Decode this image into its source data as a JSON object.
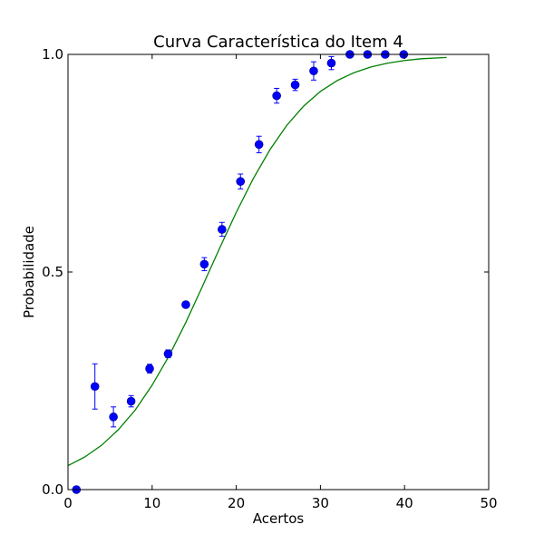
{
  "chart_data": {
    "type": "scatter",
    "title": "Curva Característica do Item 4",
    "xlabel": "Acertos",
    "ylabel": "Probabilidade",
    "xlim": [
      0,
      50
    ],
    "ylim": [
      0.0,
      1.0
    ],
    "x_ticks": [
      0,
      10,
      20,
      30,
      40,
      50
    ],
    "x_tick_labels": [
      "0",
      "10",
      "20",
      "30",
      "40",
      "50"
    ],
    "y_ticks": [
      0.0,
      0.5,
      1.0
    ],
    "y_tick_labels": [
      "0.0",
      "0.5",
      "1.0"
    ],
    "grid": false,
    "legend": "none",
    "colors": {
      "points": "#0000ff",
      "curve": "#008000",
      "axes": "#000000"
    },
    "series": [
      {
        "type": "scatter_errorbar",
        "x": [
          1.0,
          3.2,
          5.4,
          7.5,
          9.7,
          11.9,
          14.0,
          16.2,
          18.3,
          20.5,
          22.7,
          24.8,
          27.0,
          29.2,
          31.3,
          33.5,
          35.6,
          37.7,
          39.9
        ],
        "y": [
          0.0,
          0.237,
          0.167,
          0.203,
          0.278,
          0.312,
          0.425,
          0.518,
          0.598,
          0.708,
          0.793,
          0.905,
          0.93,
          0.962,
          0.98,
          1.0,
          1.0,
          1.0,
          1.0
        ],
        "yerr": [
          0.0,
          0.052,
          0.023,
          0.013,
          0.01,
          0.009,
          0.007,
          0.015,
          0.016,
          0.017,
          0.019,
          0.017,
          0.013,
          0.021,
          0.015,
          0.0,
          0.0,
          0.0,
          0.0
        ]
      },
      {
        "type": "line",
        "x": [
          0,
          2,
          4,
          6,
          8,
          10,
          12,
          14,
          16,
          18,
          20,
          22,
          24,
          26,
          28,
          30,
          32,
          34,
          36,
          38,
          40,
          42,
          45
        ],
        "y": [
          0.055,
          0.075,
          0.102,
          0.138,
          0.183,
          0.24,
          0.307,
          0.384,
          0.468,
          0.554,
          0.637,
          0.714,
          0.781,
          0.837,
          0.881,
          0.915,
          0.94,
          0.958,
          0.971,
          0.98,
          0.986,
          0.99,
          0.993
        ]
      }
    ]
  }
}
